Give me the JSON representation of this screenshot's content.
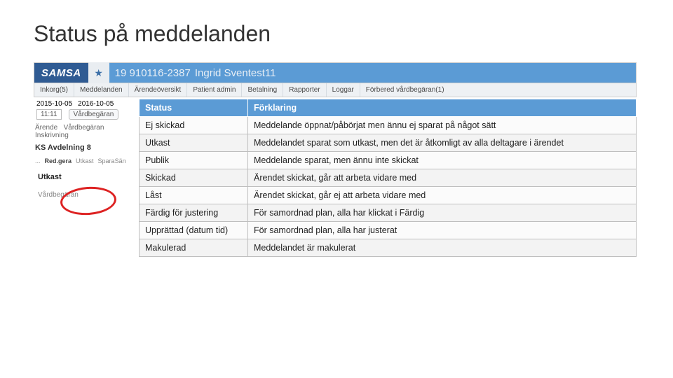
{
  "slide": {
    "title": "Status på meddelanden"
  },
  "appbar": {
    "brand": "SAMSA",
    "star_icon": "★",
    "patient_id": "19 910116-2387",
    "patient_name": "Ingrid Sventest11"
  },
  "menu": {
    "items": [
      "Inkorg(5)",
      "Meddelanden",
      "Ärendeöversikt",
      "Patient admin",
      "Betalning",
      "Rapporter",
      "Loggar",
      "Förbered vårdbegäran(1)"
    ]
  },
  "sidebar": {
    "date1": "2015-10-05",
    "date2": "2016-10-05",
    "time": "11:11",
    "pill": "Vårdbegäran",
    "arende_label": "Ärende",
    "arende_val1": "Vårdbegäran",
    "arende_val2": "Inskrivning",
    "avdelning": "KS Avdelning 8",
    "tools": {
      "t1": "...",
      "t2": "Red.gera",
      "t3": "Utkast",
      "t4": "SparaSän"
    },
    "utkast": "Utkast",
    "vardbegaran": "Vårdbegäran"
  },
  "table": {
    "headers": {
      "status": "Status",
      "explanation": "Förklaring"
    },
    "header_bg": "#5b9bd5",
    "rows": [
      {
        "status": "Ej skickad",
        "explanation": "Meddelande öppnat/påbörjat men ännu ej sparat på något sätt"
      },
      {
        "status": "Utkast",
        "explanation": "Meddelandet sparat som utkast, men det är åtkomligt av alla deltagare i ärendet"
      },
      {
        "status": "Publik",
        "explanation": "Meddelande sparat, men ännu inte skickat"
      },
      {
        "status": "Skickad",
        "explanation": "Ärendet skickat, går att arbeta vidare med"
      },
      {
        "status": "Låst",
        "explanation": "Ärendet skickat, går ej att arbeta vidare med"
      },
      {
        "status": "Färdig för justering",
        "explanation": "För samordnad plan, alla har klickat i Färdig"
      },
      {
        "status": "Upprättad (datum tid)",
        "explanation": "För samordnad plan, alla har justerat"
      },
      {
        "status": "Makulerad",
        "explanation": "Meddelandet är makulerat"
      }
    ]
  }
}
